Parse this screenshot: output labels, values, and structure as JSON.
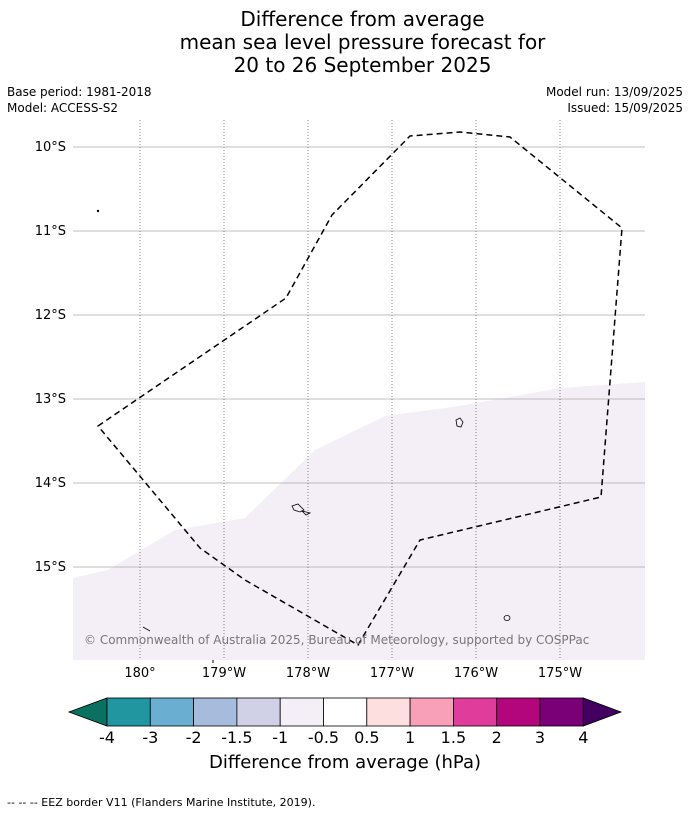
{
  "title": {
    "line1": "Difference from average",
    "line2": "mean sea level pressure forecast for",
    "line3": "20 to 26 September 2025"
  },
  "meta": {
    "base_period": "Base period: 1981-2018",
    "model": "Model: ACCESS-S2",
    "model_run": "Model run: 13/09/2025",
    "issued": "Issued: 15/09/2025"
  },
  "map": {
    "lat_labels": [
      "10°S",
      "11°S",
      "12°S",
      "13°S",
      "14°S",
      "15°S"
    ],
    "lon_labels": [
      "180°",
      "179°W",
      "178°W",
      "177°W",
      "176°W",
      "175°W"
    ],
    "copyright": "© Commonwealth of Australia 2025, Bureau of Meteorology, supported by COSPPac",
    "colors": {
      "anomaly_fill": "#f4eef6",
      "grid": "#aaaaaa",
      "eez": "#000000"
    }
  },
  "colorbar": {
    "tick_labels": [
      "-4",
      "-3",
      "-2",
      "-1.5",
      "-1",
      "-0.5",
      "0.5",
      "1",
      "1.5",
      "2",
      "3",
      "4"
    ],
    "colors": [
      "#0a7060",
      "#1f96a0",
      "#6aaed2",
      "#a7bbdd",
      "#d0d0e6",
      "#f4eef6",
      "#ffffff",
      "#fddfe0",
      "#f8a0b8",
      "#e03c9b",
      "#b4067c",
      "#7a0078",
      "#430060"
    ],
    "label": "Difference from average (hPa)"
  },
  "footer": "-- -- -- EEZ border V11 (Flanders Marine Institute, 2019)."
}
